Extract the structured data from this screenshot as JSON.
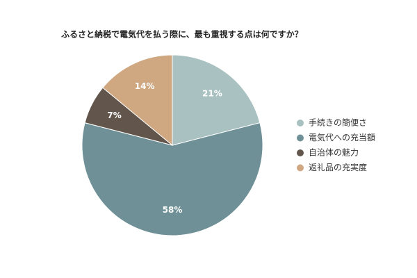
{
  "chart_data": {
    "type": "pie",
    "title": "ふるさと納税で電気代を払う際に、最も重視する点は何ですか？",
    "categories": [
      "手続きの簡便さ",
      "電気代への充当額",
      "自治体の魅力",
      "返礼品の充実度"
    ],
    "values": [
      21,
      58,
      7,
      14
    ],
    "value_labels": [
      "21%",
      "58%",
      "7%",
      "14%"
    ],
    "colors": [
      "#a9c1c1",
      "#6e9096",
      "#62554b",
      "#cfa882"
    ],
    "legend": "right"
  }
}
